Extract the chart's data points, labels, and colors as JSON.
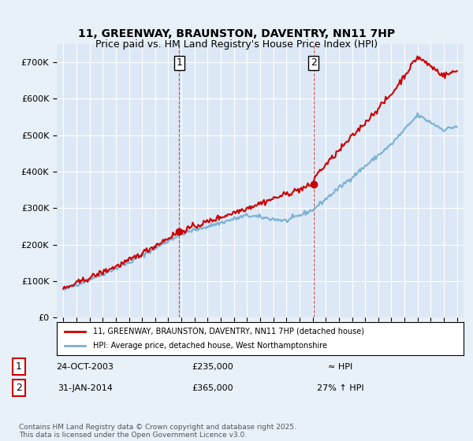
{
  "title_line1": "11, GREENWAY, BRAUNSTON, DAVENTRY, NN11 7HP",
  "title_line2": "Price paid vs. HM Land Registry's House Price Index (HPI)",
  "bg_color": "#e8f0f8",
  "plot_bg_color": "#dce8f5",
  "grid_color": "#ffffff",
  "red_line_color": "#cc0000",
  "blue_line_color": "#7ab0d4",
  "sale1_date_num": 2003.82,
  "sale1_price": 235000,
  "sale1_label": "1",
  "sale2_date_num": 2014.08,
  "sale2_price": 365000,
  "sale2_label": "2",
  "legend_label_red": "11, GREENWAY, BRAUNSTON, DAVENTRY, NN11 7HP (detached house)",
  "legend_label_blue": "HPI: Average price, detached house, West Northamptonshire",
  "annotation1_date": "24-OCT-2003",
  "annotation1_price": "£235,000",
  "annotation1_hpi": "≈ HPI",
  "annotation2_date": "31-JAN-2014",
  "annotation2_price": "£365,000",
  "annotation2_hpi": "27% ↑ HPI",
  "footer": "Contains HM Land Registry data © Crown copyright and database right 2025.\nThis data is licensed under the Open Government Licence v3.0.",
  "ylim_min": 0,
  "ylim_max": 750000,
  "xlim_min": 1994.5,
  "xlim_max": 2025.5
}
